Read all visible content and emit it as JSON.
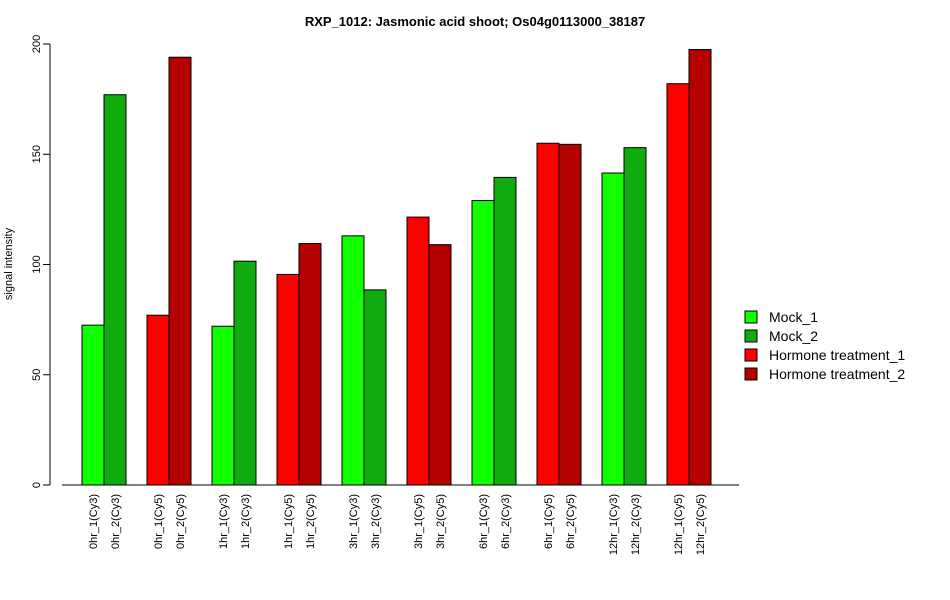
{
  "chart_data": {
    "type": "bar",
    "title": "RXP_1012: Jasmonic acid shoot; Os04g0113000_38187",
    "ylabel": "signal intensity",
    "xlabel": "",
    "ylim": [
      0,
      200
    ],
    "yticks": [
      0,
      50,
      100,
      150,
      200
    ],
    "legend_position": "right",
    "series": [
      {
        "name": "Mock_1",
        "color": "#11ff00"
      },
      {
        "name": "Mock_2",
        "color": "#0fab0f"
      },
      {
        "name": "Hormone treatment_1",
        "color": "#ff0000"
      },
      {
        "name": "Hormone treatment_2",
        "color": "#b50000"
      }
    ],
    "bars": [
      {
        "label": "0hr_1(Cy3)",
        "value": 72.5,
        "series": 0
      },
      {
        "label": "0hr_2(Cy3)",
        "value": 177,
        "series": 1
      },
      {
        "label": "0hr_1(Cy5)",
        "value": 77,
        "series": 2
      },
      {
        "label": "0hr_2(Cy5)",
        "value": 194,
        "series": 3
      },
      {
        "label": "1hr_1(Cy3)",
        "value": 72,
        "series": 0
      },
      {
        "label": "1hr_2(Cy3)",
        "value": 101.5,
        "series": 1
      },
      {
        "label": "1hr_1(Cy5)",
        "value": 95.5,
        "series": 2
      },
      {
        "label": "1hr_2(Cy5)",
        "value": 109.5,
        "series": 3
      },
      {
        "label": "3hr_1(Cy3)",
        "value": 113,
        "series": 0
      },
      {
        "label": "3hr_2(Cy3)",
        "value": 88.5,
        "series": 1
      },
      {
        "label": "3hr_1(Cy5)",
        "value": 121.5,
        "series": 2
      },
      {
        "label": "3hr_2(Cy5)",
        "value": 109,
        "series": 3
      },
      {
        "label": "6hr_1(Cy3)",
        "value": 129,
        "series": 0
      },
      {
        "label": "6hr_2(Cy3)",
        "value": 139.5,
        "series": 1
      },
      {
        "label": "6hr_1(Cy5)",
        "value": 155,
        "series": 2
      },
      {
        "label": "6hr_2(Cy5)",
        "value": 154.5,
        "series": 3
      },
      {
        "label": "12hr_1(Cy3)",
        "value": 141.5,
        "series": 0
      },
      {
        "label": "12hr_2(Cy3)",
        "value": 153,
        "series": 1
      },
      {
        "label": "12hr_1(Cy5)",
        "value": 182,
        "series": 2
      },
      {
        "label": "12hr_2(Cy5)",
        "value": 197.5,
        "series": 3
      }
    ]
  }
}
